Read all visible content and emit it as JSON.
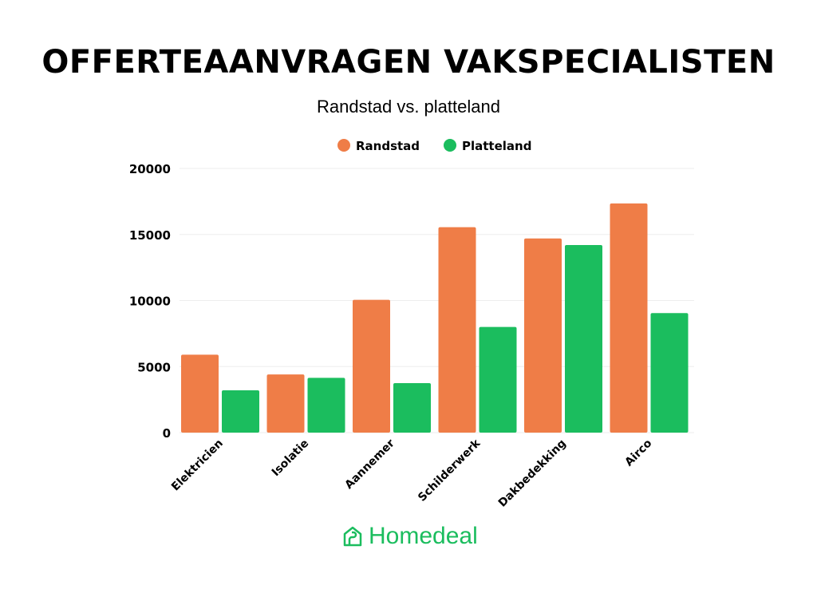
{
  "chart_data": {
    "type": "bar",
    "title": "OFFERTEAANVRAGEN VAKSPECIALISTEN",
    "subtitle": "Randstad vs. platteland",
    "categories": [
      "Elektricien",
      "Isolatie",
      "Aannemer",
      "Schilderwerk",
      "Dakbedekking",
      "Airco"
    ],
    "series": [
      {
        "name": "Randstad",
        "color": "#ef7d47",
        "values": [
          5900,
          4400,
          10050,
          15550,
          14700,
          17350
        ]
      },
      {
        "name": "Platteland",
        "color": "#1bbd5e",
        "values": [
          3200,
          4150,
          3750,
          8000,
          14200,
          9050
        ]
      }
    ],
    "ylim": [
      0,
      20000
    ],
    "yticks": [
      0,
      5000,
      10000,
      15000,
      20000
    ],
    "grid": true,
    "legend_position": "top"
  },
  "brand": {
    "name": "Homedeal",
    "color": "#1bbd5e",
    "icon": "house-icon"
  }
}
